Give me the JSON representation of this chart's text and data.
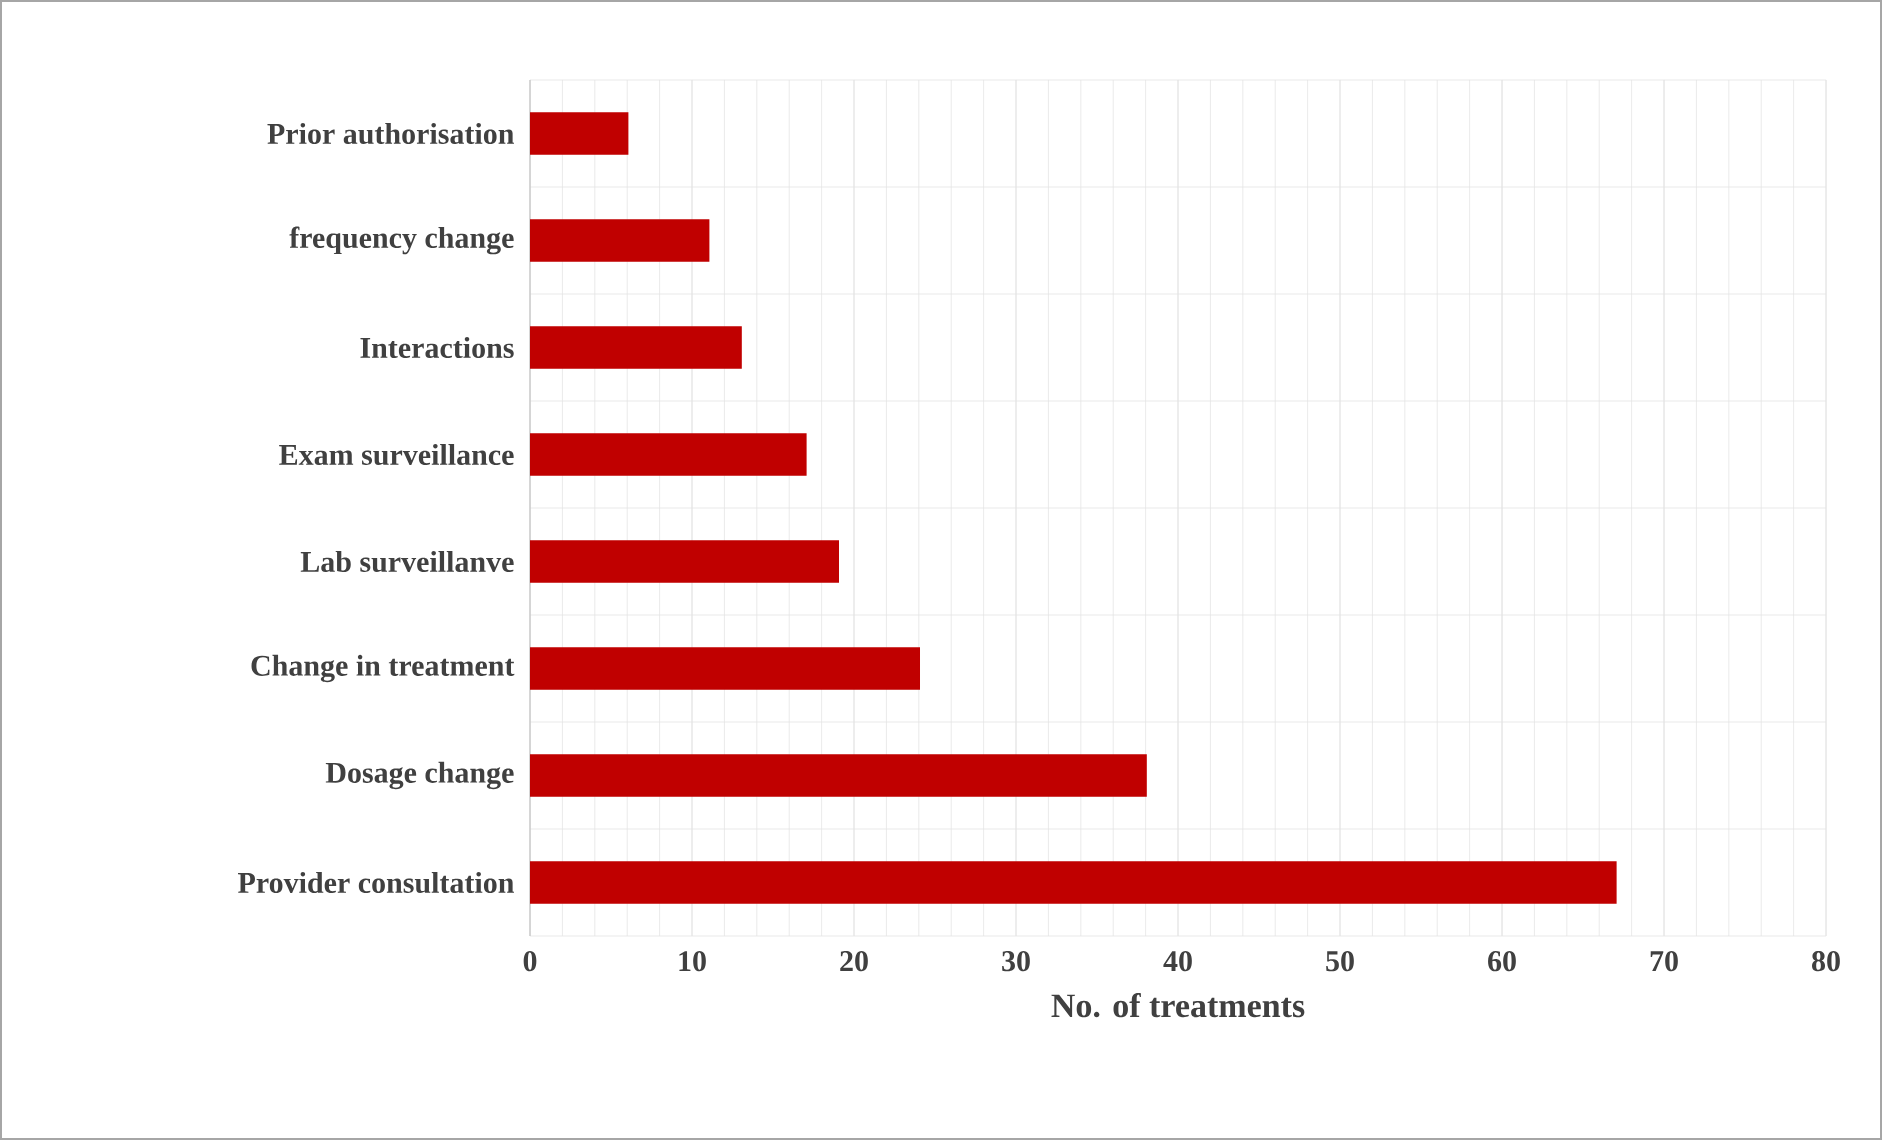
{
  "chart_data": {
    "type": "bar",
    "orientation": "horizontal",
    "xlabel": "No. of treatments",
    "categories": [
      "Prior authorisation",
      "frequency change",
      "Interactions",
      "Exam surveillance",
      "Lab surveillanve",
      "Change in treatment",
      "Dosage change",
      "Provider consultation"
    ],
    "values": [
      6,
      11,
      13,
      17,
      19,
      24,
      38,
      67
    ],
    "color": "#c00000",
    "xlim": [
      0,
      80
    ],
    "xticks": [
      0,
      10,
      20,
      30,
      40,
      50,
      60,
      70,
      80
    ],
    "grid": true
  }
}
